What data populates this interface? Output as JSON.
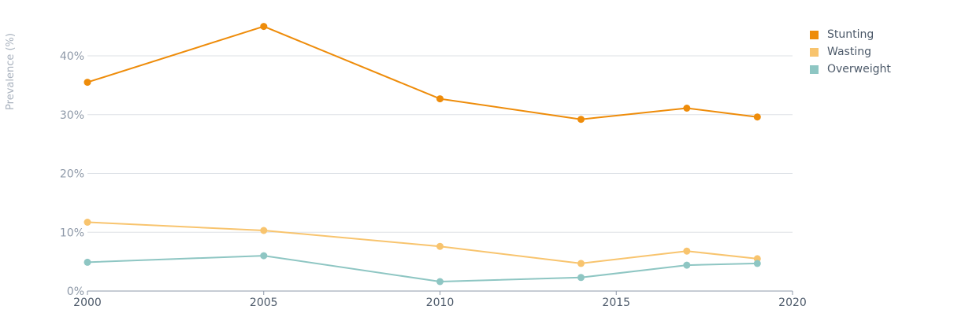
{
  "chart_data": {
    "type": "line",
    "ylabel": "Prevalence (%)",
    "xlabel": "",
    "xlim": [
      2000,
      2020
    ],
    "ylim": [
      0,
      45
    ],
    "x_ticks": [
      2000,
      2005,
      2010,
      2015,
      2020
    ],
    "y_ticks": [
      0,
      10,
      20,
      30,
      40
    ],
    "y_tick_labels": [
      "0%",
      "10%",
      "20%",
      "30%",
      "40%"
    ],
    "grid": true,
    "legend_position": "top-right",
    "series": [
      {
        "name": "Stunting",
        "color": "#ee8c0a",
        "points": [
          {
            "x": 2000,
            "y": 35.5
          },
          {
            "x": 2005,
            "y": 45.0
          },
          {
            "x": 2010,
            "y": 32.7
          },
          {
            "x": 2014,
            "y": 29.2
          },
          {
            "x": 2017,
            "y": 31.1
          },
          {
            "x": 2019,
            "y": 29.6
          }
        ]
      },
      {
        "name": "Wasting",
        "color": "#f8c46e",
        "points": [
          {
            "x": 2000,
            "y": 11.7
          },
          {
            "x": 2005,
            "y": 10.3
          },
          {
            "x": 2010,
            "y": 7.6
          },
          {
            "x": 2014,
            "y": 4.7
          },
          {
            "x": 2017,
            "y": 6.8
          },
          {
            "x": 2019,
            "y": 5.5
          }
        ]
      },
      {
        "name": "Overweight",
        "color": "#8ec6c3",
        "points": [
          {
            "x": 2000,
            "y": 4.9
          },
          {
            "x": 2005,
            "y": 6.0
          },
          {
            "x": 2010,
            "y": 1.6
          },
          {
            "x": 2014,
            "y": 2.3
          },
          {
            "x": 2017,
            "y": 4.4
          },
          {
            "x": 2019,
            "y": 4.7
          }
        ]
      }
    ]
  }
}
